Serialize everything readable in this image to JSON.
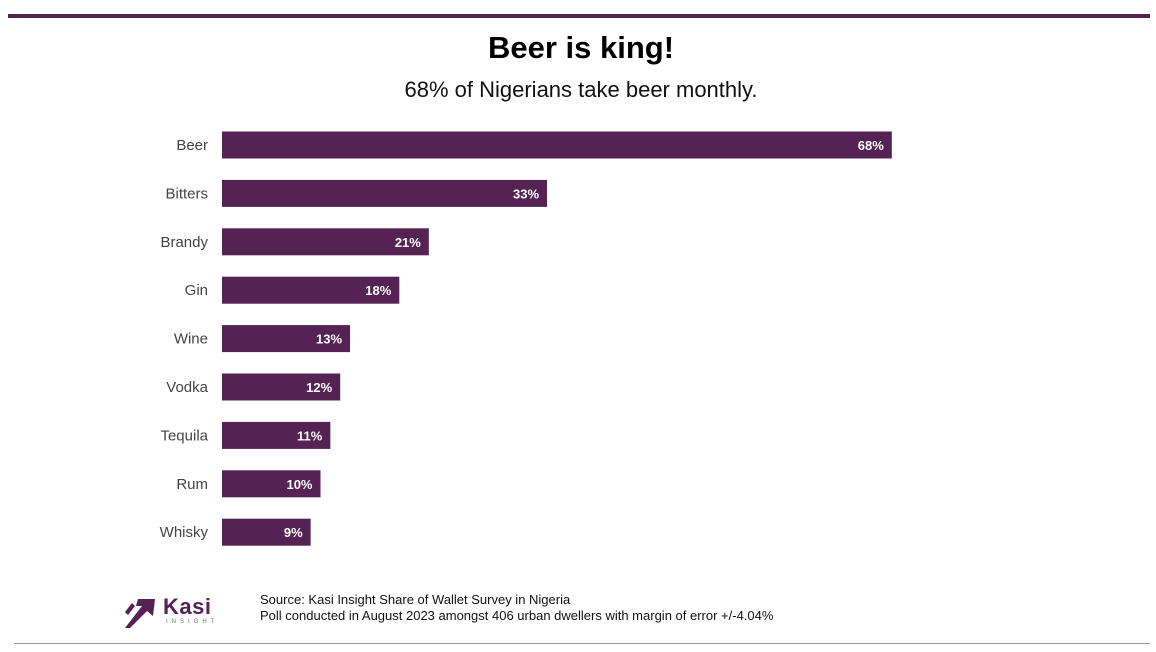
{
  "colors": {
    "bar": "#542353",
    "rule": "#542353",
    "logo": "#542353"
  },
  "title": "Beer is king!",
  "subtitle": "68% of Nigerians take beer monthly.",
  "chart_data": {
    "type": "bar",
    "orientation": "horizontal",
    "title": "Beer is king!",
    "subtitle": "68% of Nigerians take beer monthly.",
    "categories": [
      "Beer",
      "Bitters",
      "Brandy",
      "Gin",
      "Wine",
      "Vodka",
      "Tequila",
      "Rum",
      "Whisky"
    ],
    "values": [
      68,
      33,
      21,
      18,
      13,
      12,
      11,
      10,
      9
    ],
    "value_labels": [
      "68%",
      "33%",
      "21%",
      "18%",
      "13%",
      "12%",
      "11%",
      "10%",
      "9%"
    ],
    "unit": "%",
    "xlim": [
      0,
      100
    ],
    "xlabel": "",
    "ylabel": "",
    "grid": false,
    "legend": "none"
  },
  "logo": {
    "name": "Kasi",
    "subtext": "INSIGHT"
  },
  "source": {
    "line1": "Source: Kasi Insight Share of Wallet Survey in Nigeria",
    "line2": "Poll conducted in August 2023 amongst 406 urban dwellers with margin of error +/-4.04%"
  }
}
